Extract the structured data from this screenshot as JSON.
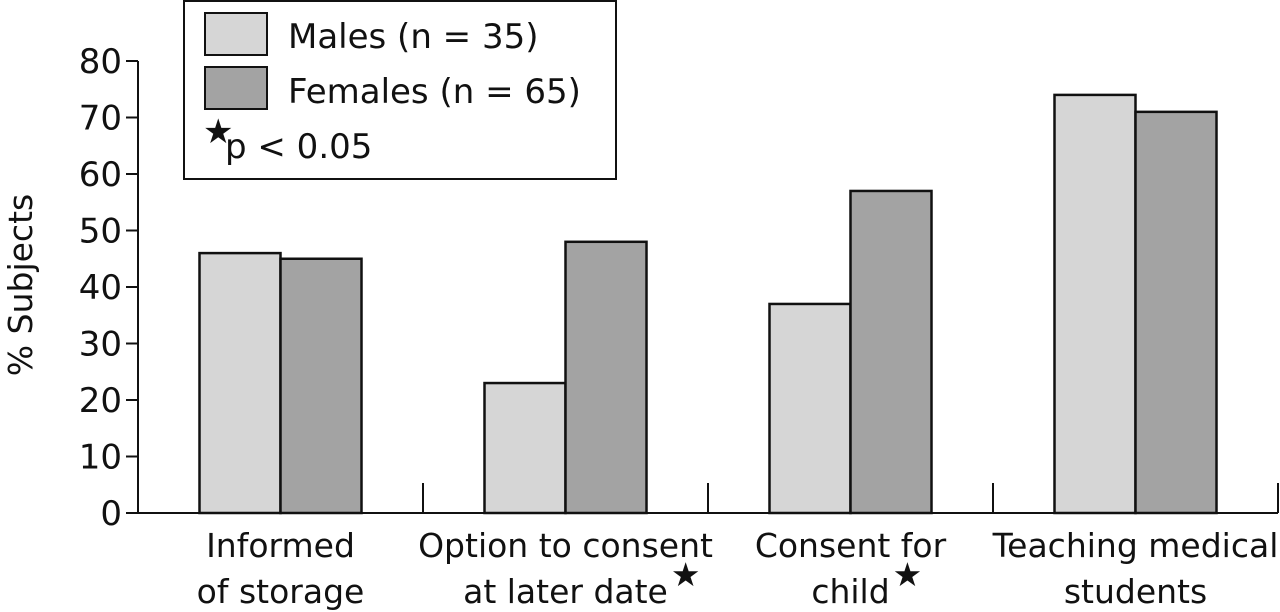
{
  "chart_data": {
    "type": "bar",
    "title": "",
    "ylabel": "% Subjects",
    "xlabel": "",
    "ylim": [
      0,
      80
    ],
    "yticks": [
      0,
      10,
      20,
      30,
      40,
      50,
      60,
      70,
      80
    ],
    "grid": false,
    "legend_position": "top-left",
    "categories": [
      {
        "line1": "Informed",
        "line2": "of storage",
        "star": false
      },
      {
        "line1": "Option to consent",
        "line2": "at later date",
        "star": true
      },
      {
        "line1": "Consent for",
        "line2": "child",
        "star": true
      },
      {
        "line1": "Teaching medical",
        "line2": "students",
        "star": false
      }
    ],
    "series": [
      {
        "name": "Males (n = 35)",
        "color": "#d6d6d6",
        "values": [
          46,
          23,
          37,
          74
        ]
      },
      {
        "name": "Females (n = 65)",
        "color": "#a3a3a3",
        "values": [
          45,
          48,
          57,
          71
        ]
      }
    ],
    "note": "p < 0.05",
    "star_symbol": "★"
  }
}
